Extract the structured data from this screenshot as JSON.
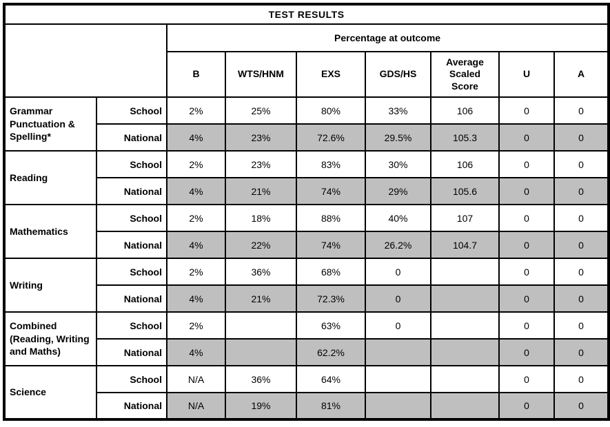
{
  "chart_data": {
    "type": "table",
    "title": "TEST RESULTS",
    "group_header": "Percentage at outcome",
    "columns": [
      "B",
      "WTS/HNM",
      "EXS",
      "GDS/HS",
      "Average Scaled Score",
      "U",
      "A"
    ],
    "row_labels": [
      "School",
      "National"
    ],
    "subjects": [
      {
        "name": "Grammar Punctuation & Spelling*",
        "series": [
          {
            "label": "School",
            "values": [
              "2%",
              "25%",
              "80%",
              "33%",
              "106",
              "0",
              "0"
            ]
          },
          {
            "label": "National",
            "values": [
              "4%",
              "23%",
              "72.6%",
              "29.5%",
              "105.3",
              "0",
              "0"
            ]
          }
        ]
      },
      {
        "name": "Reading",
        "series": [
          {
            "label": "School",
            "values": [
              "2%",
              "23%",
              "83%",
              "30%",
              "106",
              "0",
              "0"
            ]
          },
          {
            "label": "National",
            "values": [
              "4%",
              "21%",
              "74%",
              "29%",
              "105.6",
              "0",
              "0"
            ]
          }
        ]
      },
      {
        "name": "Mathematics",
        "series": [
          {
            "label": "School",
            "values": [
              "2%",
              "18%",
              "88%",
              "40%",
              "107",
              "0",
              "0"
            ]
          },
          {
            "label": "National",
            "values": [
              "4%",
              "22%",
              "74%",
              "26.2%",
              "104.7",
              "0",
              "0"
            ]
          }
        ]
      },
      {
        "name": "Writing",
        "series": [
          {
            "label": "School",
            "values": [
              "2%",
              "36%",
              "68%",
              "0",
              "",
              "0",
              "0"
            ]
          },
          {
            "label": "National",
            "values": [
              "4%",
              "21%",
              "72.3%",
              "0",
              "",
              "0",
              "0"
            ]
          }
        ]
      },
      {
        "name": "Combined (Reading, Writing and Maths)",
        "series": [
          {
            "label": "School",
            "values": [
              "2%",
              "",
              "63%",
              "0",
              "",
              "0",
              "0"
            ]
          },
          {
            "label": "National",
            "values": [
              "4%",
              "",
              "62.2%",
              "",
              "",
              "0",
              "0"
            ]
          }
        ]
      },
      {
        "name": "Science",
        "series": [
          {
            "label": "School",
            "values": [
              "N/A",
              "36%",
              "64%",
              "",
              "",
              "0",
              "0"
            ]
          },
          {
            "label": "National",
            "values": [
              "N/A",
              "19%",
              "81%",
              "",
              "",
              "0",
              "0"
            ]
          }
        ]
      }
    ]
  },
  "colors": {
    "national_row_shade": "#bfbfbf",
    "border": "#000000",
    "background": "#ffffff"
  }
}
